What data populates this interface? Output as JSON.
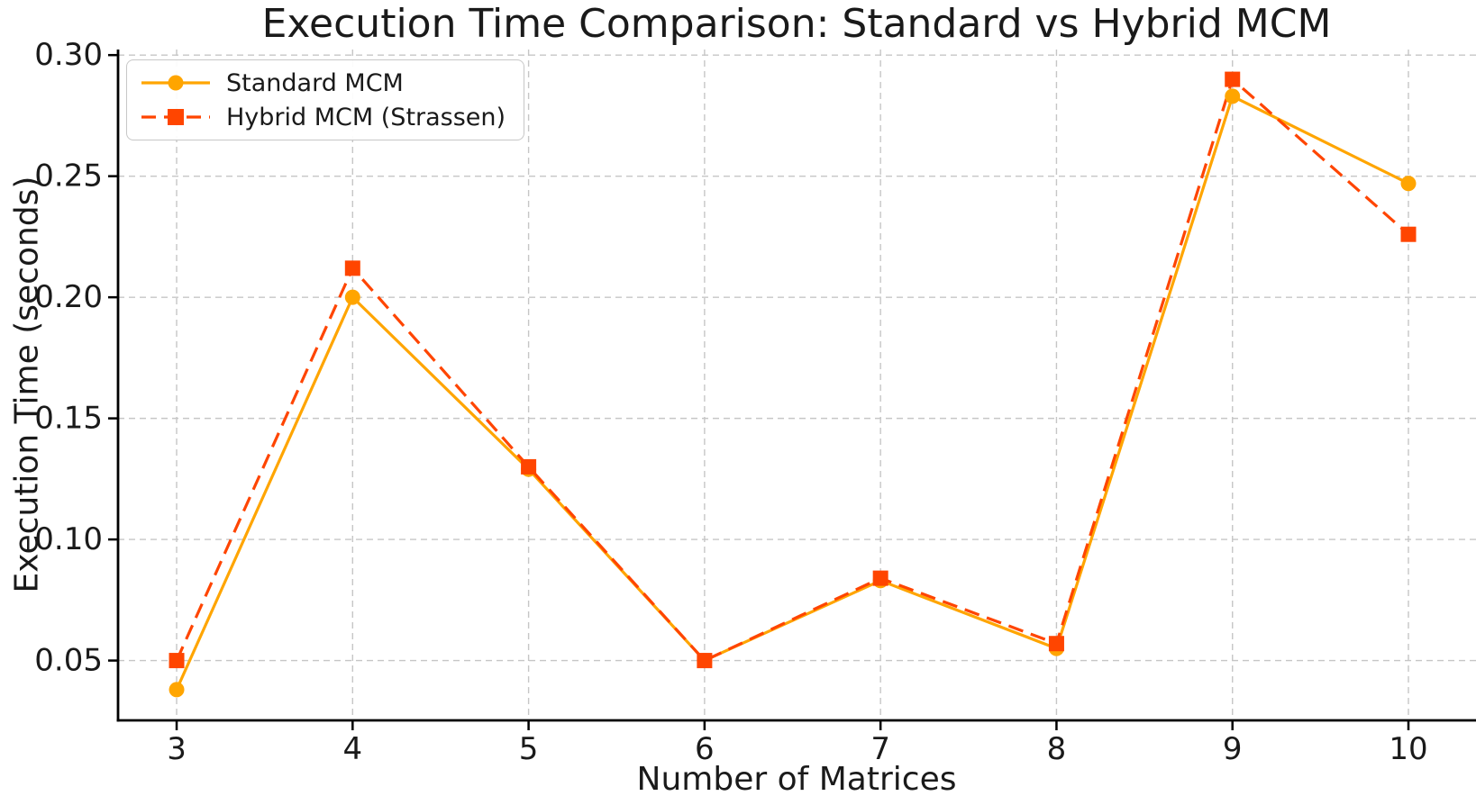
{
  "colors": {
    "standard_series": "#FFA500",
    "hybrid_series": "#FF4500",
    "grid": "#c6c6c6",
    "axis": "#000000",
    "text": "#1a1a1a",
    "legend_border": "#c7c7c7",
    "background": "#ffffff"
  },
  "chart_data": {
    "type": "line",
    "title": "Execution Time Comparison: Standard vs Hybrid MCM",
    "xlabel": "Number of Matrices",
    "ylabel": "Execution Time (seconds)",
    "x": [
      3,
      4,
      5,
      6,
      7,
      8,
      9,
      10
    ],
    "series": [
      {
        "name": "Standard MCM",
        "color": "#FFA500",
        "line_style": "solid",
        "marker": "circle",
        "values": [
          0.038,
          0.2,
          0.129,
          0.05,
          0.083,
          0.055,
          0.283,
          0.247
        ]
      },
      {
        "name": "Hybrid MCM (Strassen)",
        "color": "#FF4500",
        "line_style": "dashed",
        "marker": "square",
        "values": [
          0.05,
          0.212,
          0.13,
          0.05,
          0.084,
          0.057,
          0.29,
          0.226
        ]
      }
    ],
    "x_ticks": [
      3,
      4,
      5,
      6,
      7,
      8,
      9,
      10
    ],
    "x_tick_labels": [
      "3",
      "4",
      "5",
      "6",
      "7",
      "8",
      "9",
      "10"
    ],
    "y_ticks": [
      0.05,
      0.1,
      0.15,
      0.2,
      0.25,
      0.3
    ],
    "y_tick_labels": [
      "0.05",
      "0.10",
      "0.15",
      "0.20",
      "0.25",
      "0.30"
    ],
    "xlim": [
      2.667,
      10.384
    ],
    "ylim": [
      0.0253,
      0.3023
    ],
    "grid": true,
    "grid_style": "dashed",
    "legend_position": "upper left"
  }
}
